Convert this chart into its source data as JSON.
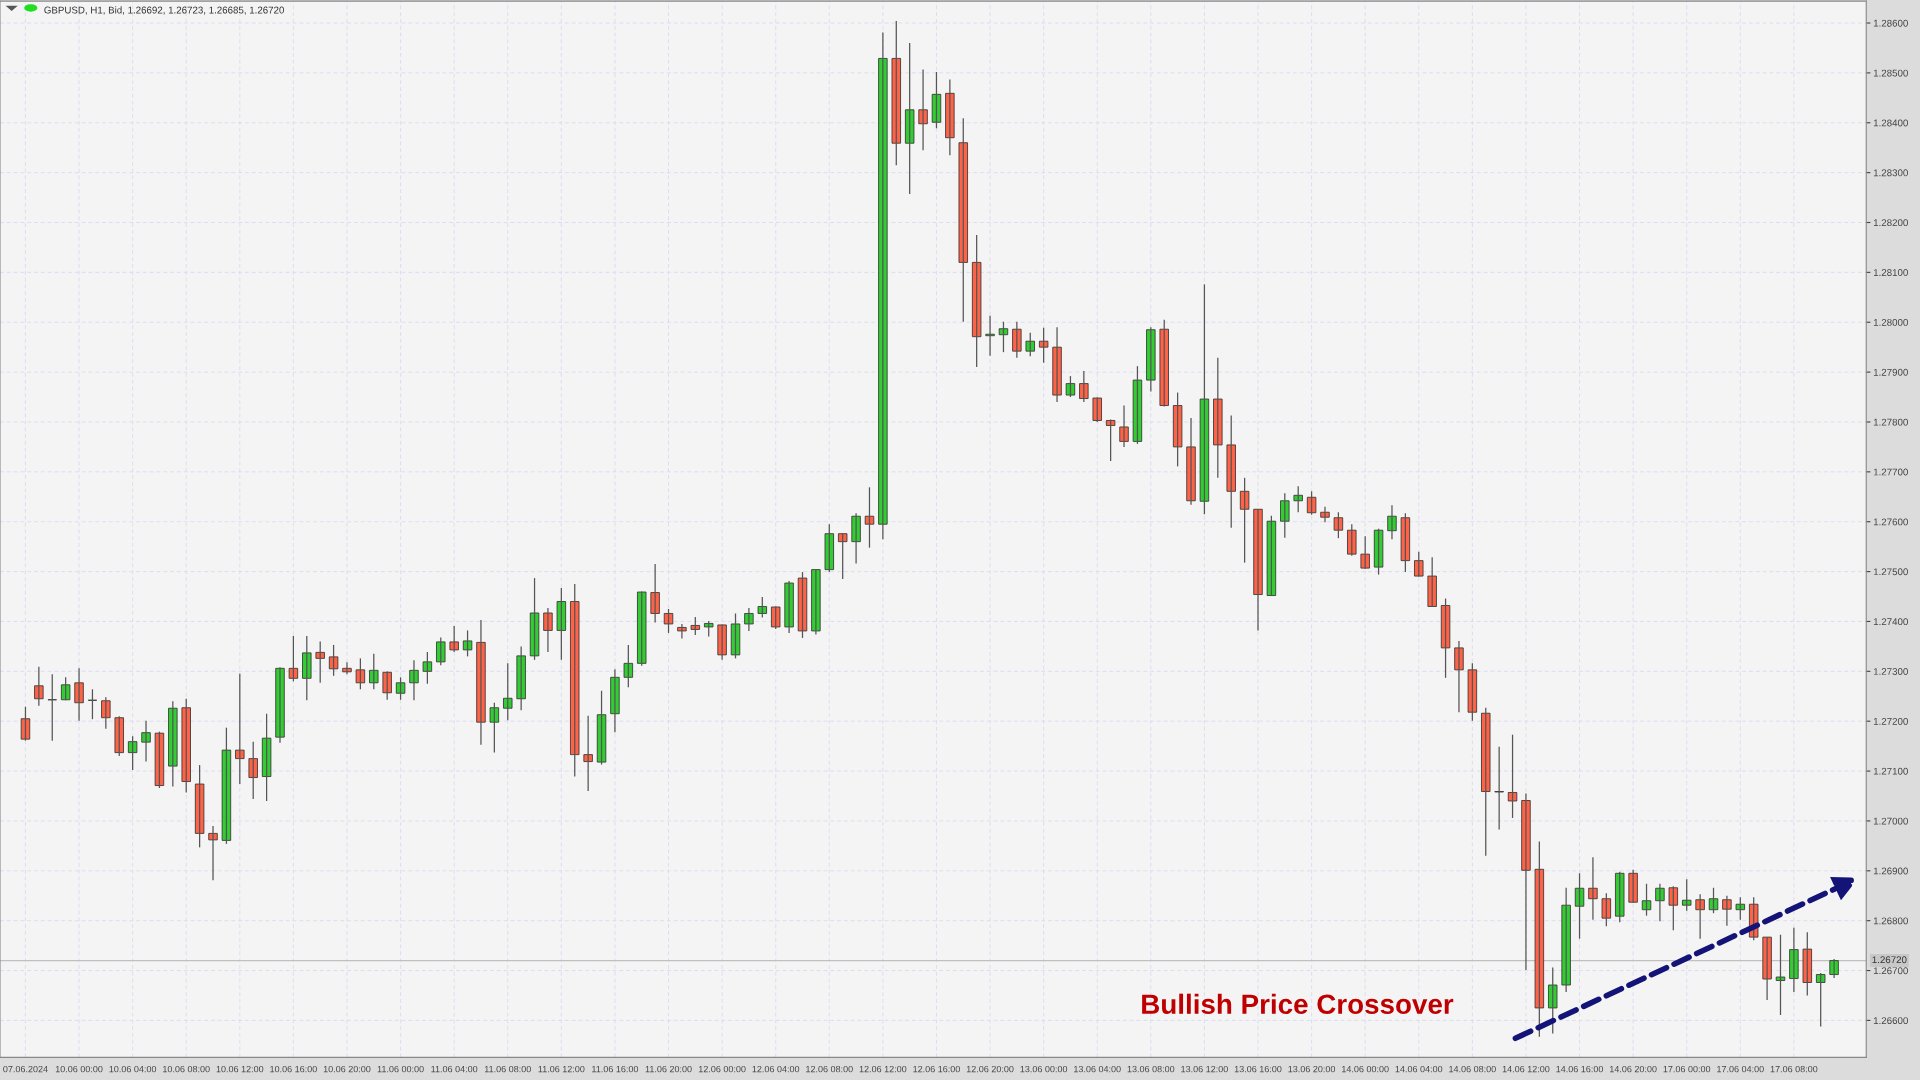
{
  "chart_data": {
    "type": "candlestick",
    "title": "GBPUSD, H1, Bid, 1.26692, 1.26723, 1.26685, 1.26720",
    "annotations": [
      "Bullish Price Crossover"
    ],
    "categories": [
      "07.06.2024",
      null,
      null,
      null,
      "10.06 00:00",
      null,
      null,
      null,
      "10.06 04:00",
      null,
      null,
      null,
      "10.06 08:00",
      null,
      null,
      null,
      "10.06 12:00",
      null,
      null,
      null,
      "10.06 16:00",
      null,
      null,
      null,
      "10.06 20:00",
      null,
      null,
      null,
      "11.06 00:00",
      null,
      null,
      null,
      "11.06 04:00",
      null,
      null,
      null,
      "11.06 08:00",
      null,
      null,
      null,
      "11.06 12:00",
      null,
      null,
      null,
      "11.06 16:00",
      null,
      null,
      null,
      "11.06 20:00",
      null,
      null,
      null,
      "12.06 00:00",
      null,
      null,
      null,
      "12.06 04:00",
      null,
      null,
      null,
      "12.06 08:00",
      null,
      null,
      null,
      "12.06 12:00",
      null,
      null,
      null,
      "12.06 16:00",
      null,
      null,
      null,
      "12.06 20:00",
      null,
      null,
      null,
      "13.06 00:00",
      null,
      null,
      null,
      "13.06 04:00",
      null,
      null,
      null,
      "13.06 08:00",
      null,
      null,
      null,
      "13.06 12:00",
      null,
      null,
      null,
      "13.06 16:00",
      null,
      null,
      null,
      "13.06 20:00",
      null,
      null,
      null,
      "14.06 00:00",
      null,
      null,
      null,
      "14.06 04:00",
      null,
      null,
      null,
      "14.06 08:00",
      null,
      null,
      null,
      "14.06 12:00",
      null,
      null,
      null,
      "14.06 16:00",
      null,
      null,
      null,
      "14.06 20:00",
      null,
      null,
      null,
      "17.06 00:00",
      null,
      null,
      null,
      "17.06 04:00",
      null,
      null,
      null,
      "17.06 08:00",
      null,
      null,
      null
    ],
    "ohlc": [
      [
        1.27205,
        1.27229,
        1.27161,
        1.27164
      ],
      [
        1.27271,
        1.27309,
        1.27231,
        1.27245
      ],
      [
        1.27243,
        1.27294,
        1.27161,
        1.27243
      ],
      [
        1.27243,
        1.27288,
        1.27242,
        1.27273
      ],
      [
        1.27277,
        1.27306,
        1.27201,
        1.27237
      ],
      [
        1.27242,
        1.27264,
        1.27204,
        1.27242
      ],
      [
        1.27241,
        1.27248,
        1.27185,
        1.27207
      ],
      [
        1.27207,
        1.2721,
        1.2713,
        1.27137
      ],
      [
        1.27137,
        1.2717,
        1.27102,
        1.27159
      ],
      [
        1.27158,
        1.27201,
        1.27119,
        1.27177
      ],
      [
        1.27176,
        1.27179,
        1.27066,
        1.27071
      ],
      [
        1.2711,
        1.2724,
        1.27069,
        1.27226
      ],
      [
        1.27227,
        1.27245,
        1.27057,
        1.27079
      ],
      [
        1.27074,
        1.27112,
        1.26947,
        1.26975
      ],
      [
        1.26975,
        1.2699,
        1.26881,
        1.26962
      ],
      [
        1.26961,
        1.27187,
        1.26954,
        1.27142
      ],
      [
        1.27142,
        1.27295,
        1.27074,
        1.27125
      ],
      [
        1.27125,
        1.27159,
        1.27044,
        1.27087
      ],
      [
        1.27089,
        1.27215,
        1.2704,
        1.27166
      ],
      [
        1.27168,
        1.27308,
        1.27157,
        1.27306
      ],
      [
        1.27306,
        1.27371,
        1.2728,
        1.27286
      ],
      [
        1.27286,
        1.27371,
        1.27242,
        1.27337
      ],
      [
        1.27338,
        1.2736,
        1.27277,
        1.27326
      ],
      [
        1.27329,
        1.27353,
        1.27291,
        1.27305
      ],
      [
        1.27306,
        1.27318,
        1.27294,
        1.27299
      ],
      [
        1.27303,
        1.27326,
        1.27264,
        1.27277
      ],
      [
        1.27277,
        1.27335,
        1.27264,
        1.27302
      ],
      [
        1.27298,
        1.273,
        1.27243,
        1.27257
      ],
      [
        1.27256,
        1.27288,
        1.27243,
        1.27277
      ],
      [
        1.27277,
        1.27322,
        1.27242,
        1.27302
      ],
      [
        1.273,
        1.27339,
        1.27275,
        1.27319
      ],
      [
        1.27319,
        1.27368,
        1.27312,
        1.27359
      ],
      [
        1.27359,
        1.27391,
        1.27339,
        1.27343
      ],
      [
        1.27343,
        1.27382,
        1.2733,
        1.27361
      ],
      [
        1.27358,
        1.27403,
        1.27153,
        1.27198
      ],
      [
        1.27198,
        1.27237,
        1.27137,
        1.27227
      ],
      [
        1.27226,
        1.27316,
        1.27202,
        1.27246
      ],
      [
        1.27245,
        1.2735,
        1.27222,
        1.27331
      ],
      [
        1.27331,
        1.27487,
        1.27323,
        1.27417
      ],
      [
        1.27417,
        1.27427,
        1.27339,
        1.27382
      ],
      [
        1.27382,
        1.27467,
        1.27323,
        1.2744
      ],
      [
        1.2744,
        1.27475,
        1.27089,
        1.27133
      ],
      [
        1.27133,
        1.27211,
        1.2706,
        1.27119
      ],
      [
        1.27118,
        1.27261,
        1.27113,
        1.27213
      ],
      [
        1.27215,
        1.27304,
        1.27178,
        1.27288
      ],
      [
        1.27288,
        1.27353,
        1.27268,
        1.27316
      ],
      [
        1.27316,
        1.2746,
        1.27311,
        1.27459
      ],
      [
        1.27458,
        1.27515,
        1.27398,
        1.27416
      ],
      [
        1.27416,
        1.27425,
        1.27377,
        1.27395
      ],
      [
        1.27388,
        1.27395,
        1.27366,
        1.27381
      ],
      [
        1.27392,
        1.27409,
        1.27373,
        1.27384
      ],
      [
        1.27389,
        1.27401,
        1.2737,
        1.27396
      ],
      [
        1.27393,
        1.27394,
        1.27323,
        1.27333
      ],
      [
        1.27333,
        1.27416,
        1.27326,
        1.27395
      ],
      [
        1.27395,
        1.27427,
        1.27381,
        1.27416
      ],
      [
        1.27416,
        1.27449,
        1.27408,
        1.2743
      ],
      [
        1.27429,
        1.2743,
        1.27385,
        1.27389
      ],
      [
        1.27389,
        1.27481,
        1.27377,
        1.27477
      ],
      [
        1.27487,
        1.27499,
        1.27367,
        1.27381
      ],
      [
        1.27381,
        1.27505,
        1.27374,
        1.27504
      ],
      [
        1.27504,
        1.27595,
        1.27499,
        1.27576
      ],
      [
        1.27576,
        1.27577,
        1.27485,
        1.2756
      ],
      [
        1.2756,
        1.27617,
        1.27516,
        1.27611
      ],
      [
        1.27611,
        1.27669,
        1.27548,
        1.27595
      ],
      [
        1.27595,
        1.28581,
        1.27565,
        1.28529
      ],
      [
        1.28529,
        1.28604,
        1.28315,
        1.28359
      ],
      [
        1.28359,
        1.2856,
        1.28257,
        1.28426
      ],
      [
        1.28426,
        1.28507,
        1.28345,
        1.28398
      ],
      [
        1.28401,
        1.28502,
        1.28389,
        1.28457
      ],
      [
        1.28459,
        1.28487,
        1.28335,
        1.2837
      ],
      [
        1.2836,
        1.28409,
        1.28001,
        1.2812
      ],
      [
        1.2812,
        1.28175,
        1.2791,
        1.27971
      ],
      [
        1.27973,
        1.28013,
        1.27933,
        1.27976
      ],
      [
        1.27975,
        1.28001,
        1.2794,
        1.27987
      ],
      [
        1.27986,
        1.28001,
        1.27929,
        1.27942
      ],
      [
        1.27942,
        1.27979,
        1.27932,
        1.27962
      ],
      [
        1.27962,
        1.27989,
        1.27919,
        1.2795
      ],
      [
        1.2795,
        1.2799,
        1.2784,
        1.27854
      ],
      [
        1.27854,
        1.27892,
        1.2785,
        1.27877
      ],
      [
        1.27877,
        1.27902,
        1.2784,
        1.27847
      ],
      [
        1.27848,
        1.27849,
        1.278,
        1.27803
      ],
      [
        1.27803,
        1.27805,
        1.27722,
        1.27793
      ],
      [
        1.2779,
        1.27833,
        1.2775,
        1.27761
      ],
      [
        1.27761,
        1.27912,
        1.27756,
        1.27884
      ],
      [
        1.27884,
        1.2799,
        1.27861,
        1.27985
      ],
      [
        1.27986,
        1.28005,
        1.27831,
        1.27833
      ],
      [
        1.27833,
        1.27859,
        1.27711,
        1.2775
      ],
      [
        1.2775,
        1.27808,
        1.27634,
        1.27642
      ],
      [
        1.27641,
        1.28076,
        1.27615,
        1.27846
      ],
      [
        1.27846,
        1.27929,
        1.27688,
        1.27754
      ],
      [
        1.27754,
        1.27813,
        1.27588,
        1.27661
      ],
      [
        1.27661,
        1.27688,
        1.27518,
        1.27625
      ],
      [
        1.27625,
        1.27625,
        1.27382,
        1.27454
      ],
      [
        1.27452,
        1.27612,
        1.27452,
        1.27601
      ],
      [
        1.27601,
        1.27657,
        1.27568,
        1.27642
      ],
      [
        1.27642,
        1.27671,
        1.27619,
        1.27653
      ],
      [
        1.27649,
        1.27661,
        1.27614,
        1.27618
      ],
      [
        1.27619,
        1.2763,
        1.27599,
        1.27609
      ],
      [
        1.27608,
        1.27619,
        1.27567,
        1.27583
      ],
      [
        1.27583,
        1.27595,
        1.27532,
        1.27535
      ],
      [
        1.27535,
        1.27571,
        1.27505,
        1.27507
      ],
      [
        1.27509,
        1.27586,
        1.27494,
        1.27583
      ],
      [
        1.27582,
        1.27633,
        1.27565,
        1.27611
      ],
      [
        1.27608,
        1.27617,
        1.27499,
        1.27522
      ],
      [
        1.27522,
        1.2754,
        1.2749,
        1.27491
      ],
      [
        1.27491,
        1.27529,
        1.27429,
        1.2743
      ],
      [
        1.27432,
        1.27446,
        1.27287,
        1.27347
      ],
      [
        1.27347,
        1.27361,
        1.27218,
        1.27303
      ],
      [
        1.27303,
        1.27316,
        1.27201,
        1.27218
      ],
      [
        1.27216,
        1.27227,
        1.2693,
        1.27059
      ],
      [
        1.27059,
        1.27149,
        1.26983,
        1.27058
      ],
      [
        1.27057,
        1.27173,
        1.27006,
        1.2704
      ],
      [
        1.27041,
        1.27055,
        1.26701,
        1.26901
      ],
      [
        1.26903,
        1.26959,
        1.26567,
        1.26625
      ],
      [
        1.26625,
        1.26706,
        1.26574,
        1.26671
      ],
      [
        1.26671,
        1.26866,
        1.26657,
        1.26831
      ],
      [
        1.26829,
        1.26895,
        1.26764,
        1.26865
      ],
      [
        1.26865,
        1.26927,
        1.26802,
        1.26844
      ],
      [
        1.26844,
        1.26855,
        1.26789,
        1.26805
      ],
      [
        1.26809,
        1.26898,
        1.26797,
        1.26895
      ],
      [
        1.26895,
        1.26902,
        1.26836,
        1.26837
      ],
      [
        1.26822,
        1.26874,
        1.2681,
        1.2684
      ],
      [
        1.2684,
        1.26874,
        1.26799,
        1.26865
      ],
      [
        1.26866,
        1.26869,
        1.26781,
        1.26831
      ],
      [
        1.26831,
        1.26883,
        1.2682,
        1.26841
      ],
      [
        1.26842,
        1.26853,
        1.26764,
        1.26822
      ],
      [
        1.26822,
        1.26866,
        1.26815,
        1.26844
      ],
      [
        1.26842,
        1.2685,
        1.2679,
        1.26823
      ],
      [
        1.26822,
        1.26847,
        1.26802,
        1.26833
      ],
      [
        1.26833,
        1.26847,
        1.26761,
        1.26767
      ],
      [
        1.26767,
        1.26767,
        1.26641,
        1.26683
      ],
      [
        1.2668,
        1.26772,
        1.26611,
        1.26687
      ],
      [
        1.26684,
        1.26786,
        1.26657,
        1.26742
      ],
      [
        1.26743,
        1.26777,
        1.2665,
        1.26676
      ],
      [
        1.26676,
        1.26695,
        1.26588,
        1.26692
      ],
      [
        1.26692,
        1.26723,
        1.26685,
        1.2672
      ]
    ],
    "colors": [
      "#ff6347",
      "#ff6347",
      "#333333",
      "#32cd32",
      "#ff6347",
      "#333333",
      "#ff6347",
      "#ff6347",
      "#32cd32",
      "#32cd32",
      "#ff6347",
      "#32cd32",
      "#ff6347",
      "#ff6347",
      "#ff6347",
      "#32cd32",
      "#ff6347",
      "#ff6347",
      "#32cd32",
      "#32cd32",
      "#ff6347",
      "#32cd32",
      "#ff6347",
      "#ff6347",
      "#ff6347",
      "#ff6347",
      "#32cd32",
      "#ff6347",
      "#32cd32",
      "#32cd32",
      "#32cd32",
      "#32cd32",
      "#ff6347",
      "#32cd32",
      "#ff6347",
      "#32cd32",
      "#32cd32",
      "#32cd32",
      "#32cd32",
      "#ff6347",
      "#32cd32",
      "#ff6347",
      "#ff6347",
      "#32cd32",
      "#32cd32",
      "#32cd32",
      "#32cd32",
      "#ff6347",
      "#ff6347",
      "#ff6347",
      "#ff6347",
      "#32cd32",
      "#ff6347",
      "#32cd32",
      "#32cd32",
      "#32cd32",
      "#ff6347",
      "#32cd32",
      "#ff6347",
      "#32cd32",
      "#32cd32",
      "#ff6347",
      "#32cd32",
      "#ff6347",
      "#32cd32",
      "#ff6347",
      "#32cd32",
      "#ff6347",
      "#32cd32",
      "#ff6347",
      "#ff6347",
      "#ff6347",
      "#32cd32",
      "#32cd32",
      "#ff6347",
      "#32cd32",
      "#ff6347",
      "#ff6347",
      "#32cd32",
      "#ff6347",
      "#ff6347",
      "#ff6347",
      "#ff6347",
      "#32cd32",
      "#32cd32",
      "#ff6347",
      "#ff6347",
      "#ff6347",
      "#32cd32",
      "#ff6347",
      "#ff6347",
      "#ff6347",
      "#ff6347",
      "#32cd32",
      "#32cd32",
      "#32cd32",
      "#ff6347",
      "#ff6347",
      "#ff6347",
      "#ff6347",
      "#ff6347",
      "#32cd32",
      "#32cd32",
      "#ff6347",
      "#ff6347",
      "#ff6347",
      "#ff6347",
      "#ff6347",
      "#ff6347",
      "#ff6347",
      "#ff6347",
      "#ff6347",
      "#ff6347",
      "#ff6347",
      "#32cd32",
      "#32cd32",
      "#32cd32",
      "#ff6347",
      "#ff6347",
      "#32cd32",
      "#ff6347",
      "#32cd32",
      "#32cd32",
      "#ff6347",
      "#32cd32",
      "#ff6347",
      "#32cd32",
      "#ff6347",
      "#32cd32",
      "#ff6347",
      "#ff6347",
      "#32cd32",
      "#32cd32",
      "#ff6347",
      "#32cd32",
      "#32cd32"
    ],
    "ylim": [
      1.26526,
      1.28644
    ],
    "yticks": [
      {
        "value": 1.266,
        "label": "1.26600"
      },
      {
        "value": 1.267,
        "label": "1.26700"
      },
      {
        "value": 1.268,
        "label": "1.26800"
      },
      {
        "value": 1.269,
        "label": "1.26900"
      },
      {
        "value": 1.27,
        "label": "1.27000"
      },
      {
        "value": 1.271,
        "label": "1.27100"
      },
      {
        "value": 1.272,
        "label": "1.27200"
      },
      {
        "value": 1.273,
        "label": "1.27300"
      },
      {
        "value": 1.274,
        "label": "1.27400"
      },
      {
        "value": 1.275,
        "label": "1.27500"
      },
      {
        "value": 1.276,
        "label": "1.27600"
      },
      {
        "value": 1.277,
        "label": "1.27700"
      },
      {
        "value": 1.278,
        "label": "1.27800"
      },
      {
        "value": 1.279,
        "label": "1.27900"
      },
      {
        "value": 1.28,
        "label": "1.28000"
      },
      {
        "value": 1.281,
        "label": "1.28100"
      },
      {
        "value": 1.282,
        "label": "1.28200"
      },
      {
        "value": 1.283,
        "label": "1.28300"
      },
      {
        "value": 1.284,
        "label": "1.28400"
      },
      {
        "value": 1.285,
        "label": "1.28500"
      },
      {
        "value": 1.286,
        "label": "1.28600"
      }
    ],
    "ref_lines": [
      {
        "axis": "y",
        "value": 1.2672,
        "label": "1.26720",
        "color": "#c0c0c0"
      }
    ],
    "grid": true
  }
}
